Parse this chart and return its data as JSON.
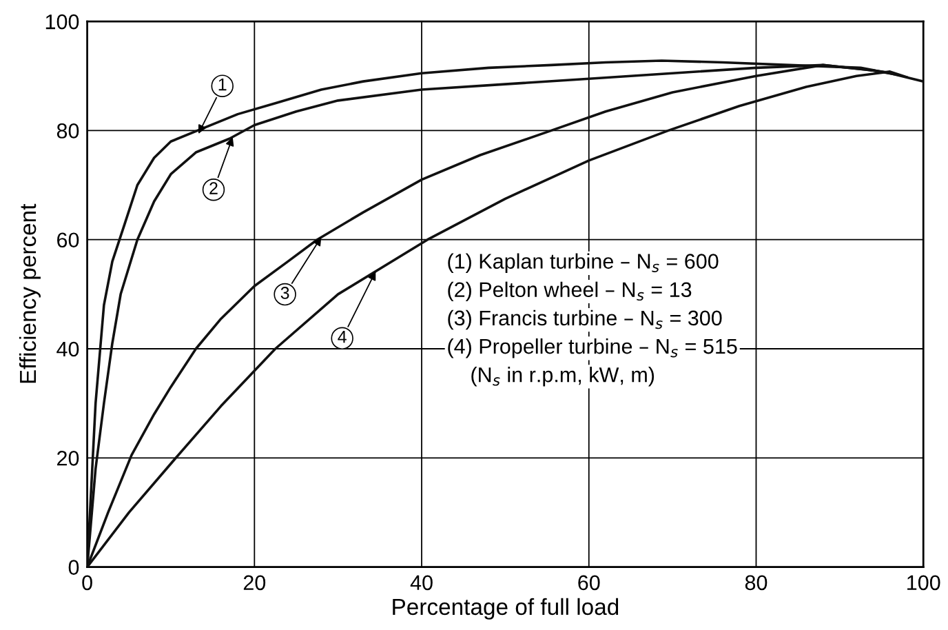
{
  "chart_data": {
    "type": "line",
    "xlabel": "Percentage of full load",
    "ylabel": "Efficiency percent",
    "xlim": [
      0,
      100
    ],
    "ylim": [
      0,
      100
    ],
    "xticks": [
      0,
      20,
      40,
      60,
      80,
      100
    ],
    "yticks": [
      0,
      20,
      40,
      60,
      80,
      100
    ],
    "grid": true,
    "marker": "none",
    "line_style": "solid",
    "series": [
      {
        "color": "#111111",
        "x": [
          0,
          1,
          2,
          3,
          4.4,
          6,
          8,
          10,
          14,
          18,
          22.5,
          28,
          33,
          40,
          48,
          55.5,
          62,
          68.7,
          76,
          84,
          92.5,
          96,
          100
        ],
        "values": [
          0,
          30,
          48,
          56,
          62.5,
          70,
          75,
          78,
          80.5,
          83,
          85,
          87.5,
          89,
          90.5,
          91.5,
          92,
          92.5,
          92.8,
          92.5,
          92,
          91.5,
          90.5,
          89
        ]
      },
      {
        "color": "#111111",
        "x": [
          0,
          1,
          2,
          3,
          4,
          6,
          8,
          10,
          13,
          17,
          20,
          25,
          30,
          40,
          50,
          60,
          70,
          80,
          88,
          93,
          96
        ],
        "values": [
          0,
          18,
          30,
          41,
          50,
          60,
          67,
          72,
          76,
          78.5,
          81,
          83.5,
          85.5,
          87.5,
          88.5,
          89.5,
          90.5,
          91.5,
          92,
          91.2,
          90.6
        ]
      },
      {
        "color": "#111111",
        "x": [
          0,
          2.5,
          5.3,
          8,
          10,
          13,
          16,
          20,
          24,
          27.5,
          33,
          40,
          47,
          55.5,
          62,
          70,
          80,
          88,
          94,
          97
        ],
        "values": [
          0,
          10,
          20.5,
          28,
          33,
          40,
          45.5,
          51.5,
          56,
          60,
          65,
          71,
          75.5,
          80,
          83.5,
          87,
          90,
          92,
          91,
          90.2
        ]
      },
      {
        "color": "#111111",
        "x": [
          0,
          5,
          10.6,
          16,
          22.5,
          30,
          40.7,
          50,
          60,
          69.5,
          78,
          86,
          92,
          96,
          98
        ],
        "values": [
          0,
          10,
          20,
          29.5,
          40,
          50,
          60,
          67.5,
          74.5,
          80,
          84.5,
          88,
          90,
          90.8,
          89.8
        ]
      }
    ],
    "annotations": [
      {
        "text": "1",
        "x": 13.3,
        "y": 79.4
      },
      {
        "text": "2",
        "x": 17.4,
        "y": 78.8
      },
      {
        "text": "3",
        "x": 28,
        "y": 60.5
      },
      {
        "text": "4",
        "x": 34.5,
        "y": 54.2
      },
      "(1) Kaplan turbine – N$_{s}$ = 600",
      "(2) Pelton wheel – N$_{s}$ = 13",
      "(3) Francis turbine – N$_{s}$ = 300",
      "(4) Propeller turbine – N$_{s}$ = 515",
      "    (N$_{s}$ in r.p.m, kW, m)"
    ]
  }
}
